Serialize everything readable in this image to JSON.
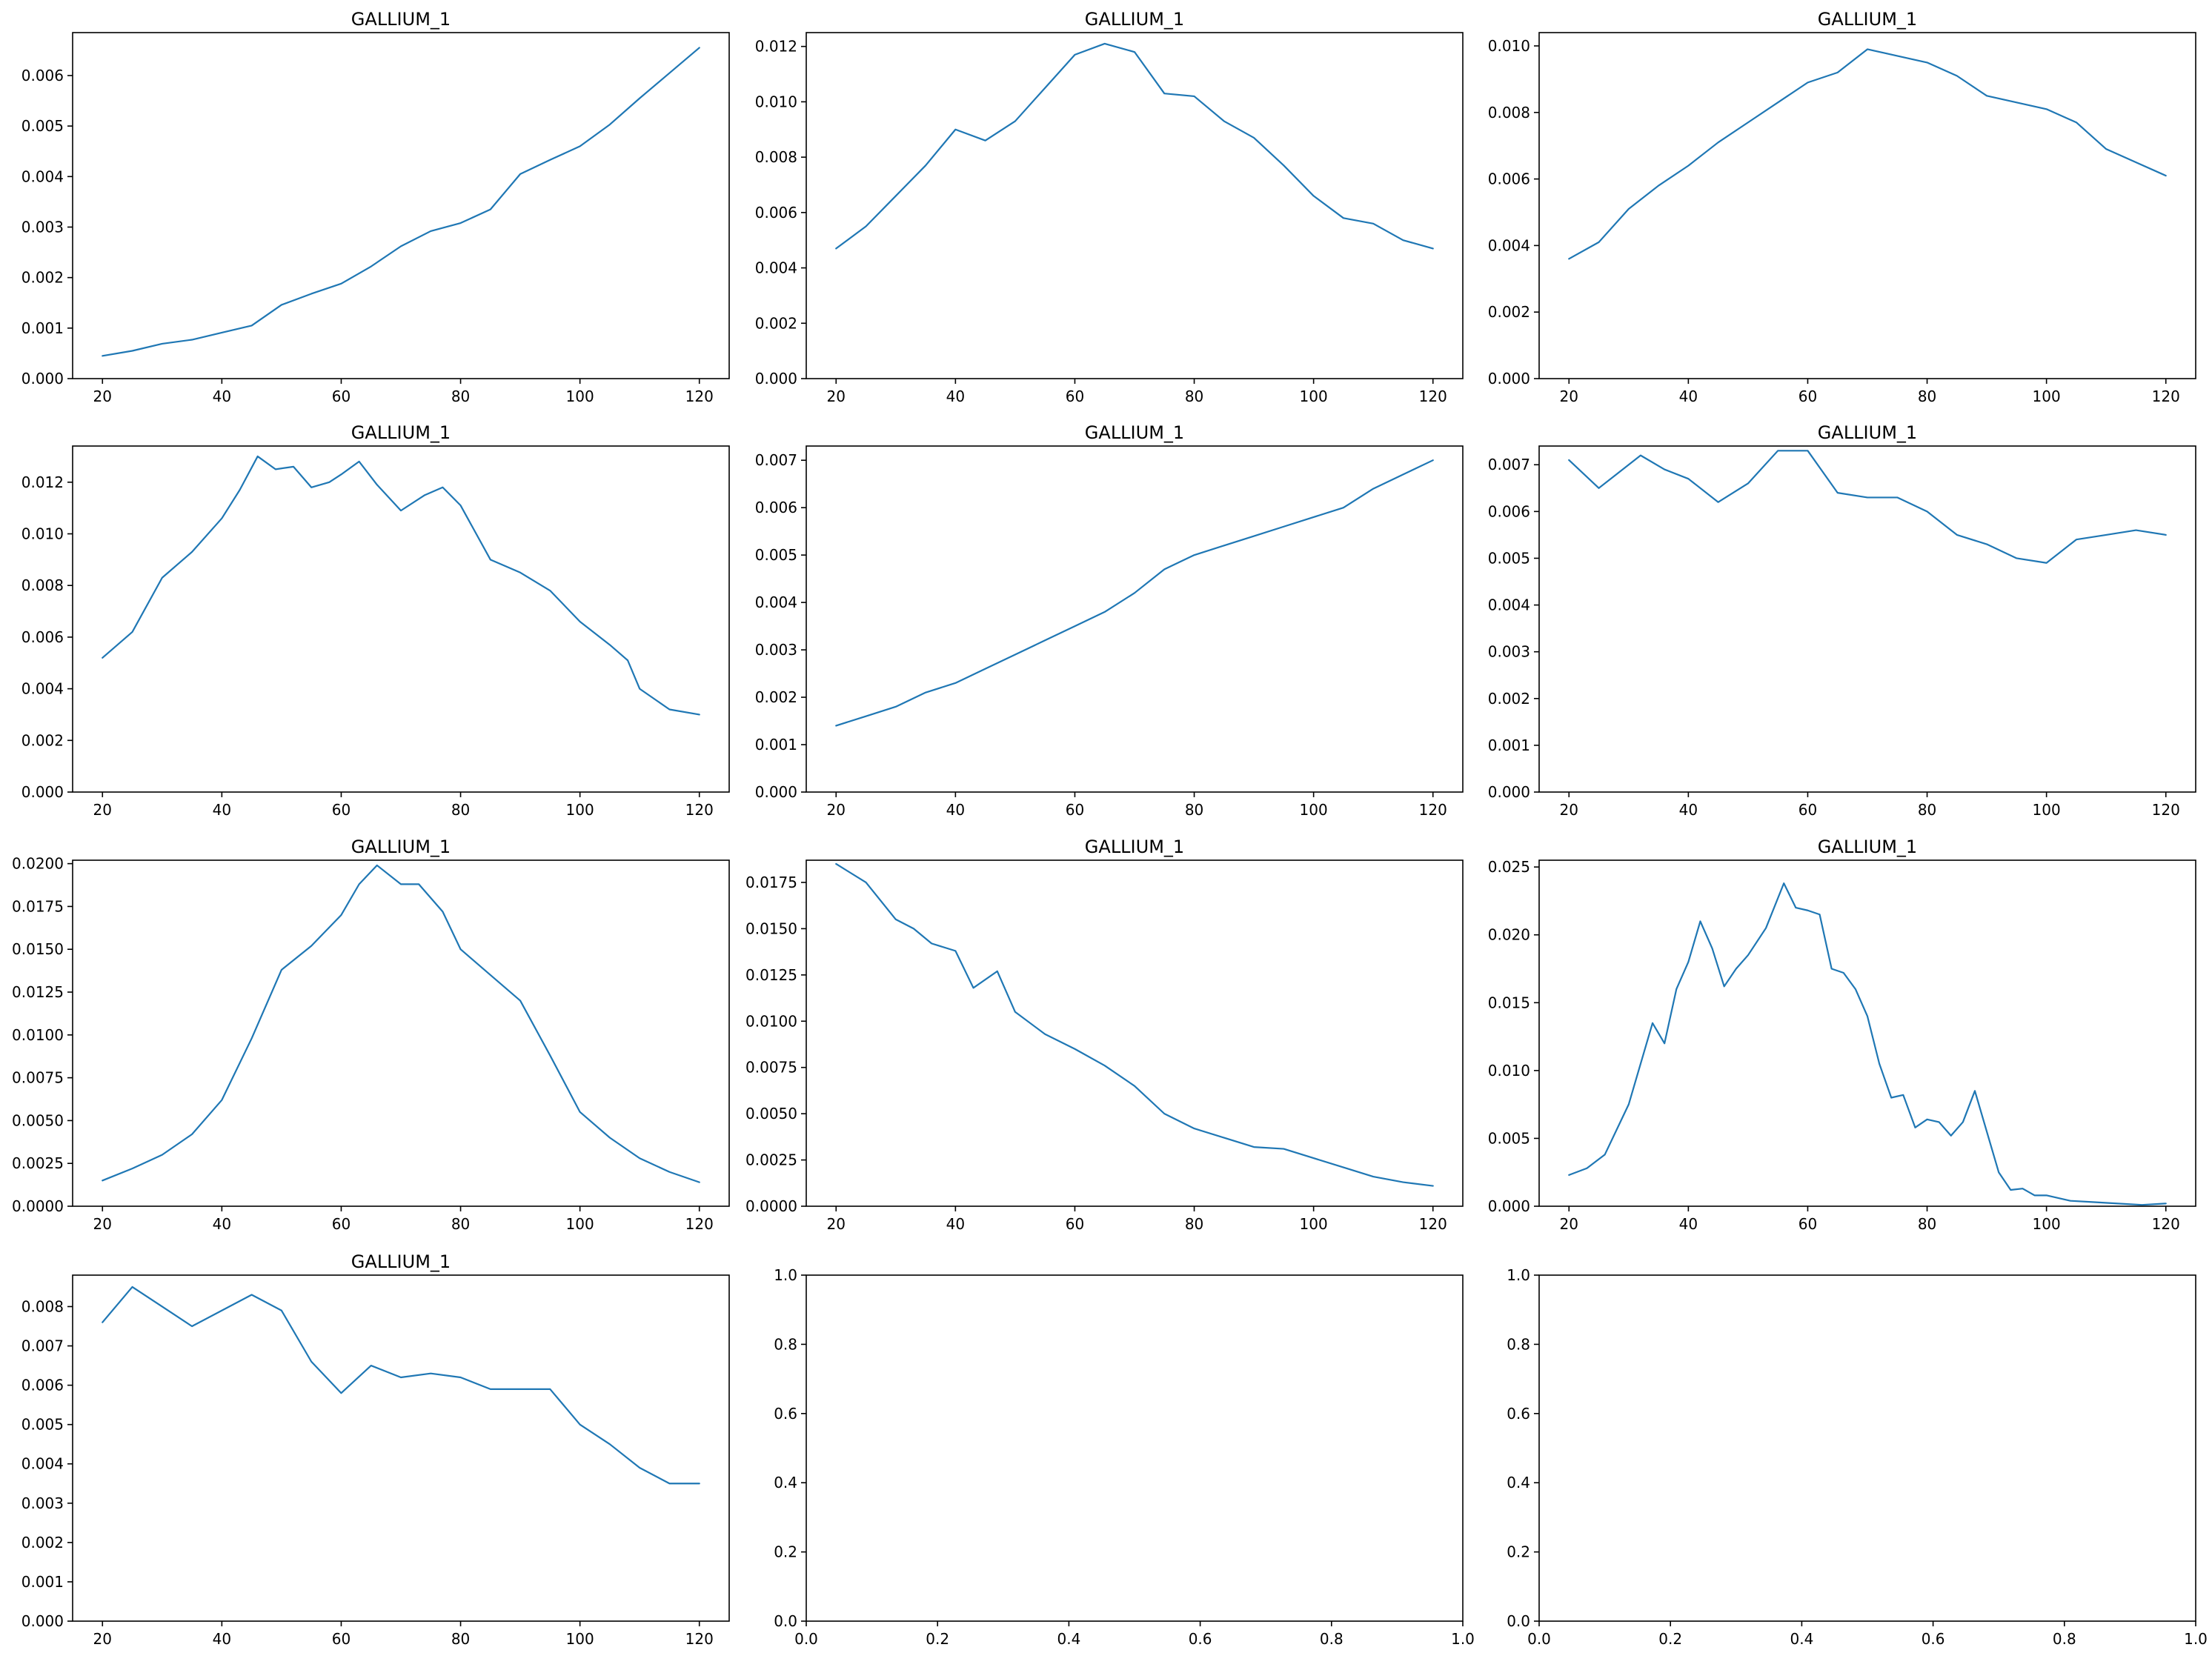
{
  "figure": {
    "series_color": "#1f77b4",
    "axes_color": "#000000",
    "background": "#ffffff"
  },
  "chart_data": [
    {
      "type": "line",
      "title": "GALLIUM_1",
      "xlim": [
        15,
        125
      ],
      "ylim": [
        0,
        0.00685
      ],
      "xticks": [
        20,
        40,
        60,
        80,
        100,
        120
      ],
      "yticks": [
        0,
        0.001,
        0.002,
        0.003,
        0.004,
        0.005,
        0.006
      ],
      "ytick_labels": [
        "0.000",
        "0.001",
        "0.002",
        "0.003",
        "0.004",
        "0.005",
        "0.006"
      ],
      "series": [
        {
          "x": [
            20,
            25,
            30,
            35,
            40,
            45,
            50,
            55,
            60,
            65,
            70,
            75,
            80,
            85,
            90,
            95,
            100,
            105,
            110,
            115,
            120
          ],
          "y": [
            0.00045,
            0.00055,
            0.00069,
            0.00077,
            0.00091,
            0.00105,
            0.00146,
            0.00168,
            0.00188,
            0.00222,
            0.00262,
            0.00292,
            0.00308,
            0.00335,
            0.00405,
            0.00433,
            0.0046,
            0.00503,
            0.00555,
            0.00605,
            0.00655
          ]
        }
      ]
    },
    {
      "type": "line",
      "title": "GALLIUM_1",
      "xlim": [
        15,
        125
      ],
      "ylim": [
        0,
        0.0125
      ],
      "xticks": [
        20,
        40,
        60,
        80,
        100,
        120
      ],
      "yticks": [
        0,
        0.002,
        0.004,
        0.006,
        0.008,
        0.01,
        0.012
      ],
      "ytick_labels": [
        "0.000",
        "0.002",
        "0.004",
        "0.006",
        "0.008",
        "0.010",
        "0.012"
      ],
      "series": [
        {
          "x": [
            20,
            25,
            30,
            35,
            40,
            45,
            50,
            55,
            60,
            65,
            70,
            75,
            80,
            85,
            90,
            95,
            100,
            105,
            110,
            115,
            120
          ],
          "y": [
            0.0047,
            0.0055,
            0.0066,
            0.0077,
            0.009,
            0.0086,
            0.0093,
            0.0105,
            0.0117,
            0.0121,
            0.0118,
            0.0103,
            0.0102,
            0.0093,
            0.0087,
            0.0077,
            0.0066,
            0.0058,
            0.0056,
            0.005,
            0.0047
          ]
        }
      ]
    },
    {
      "type": "line",
      "title": "GALLIUM_1",
      "xlim": [
        15,
        125
      ],
      "ylim": [
        0,
        0.0104
      ],
      "xticks": [
        20,
        40,
        60,
        80,
        100,
        120
      ],
      "yticks": [
        0,
        0.002,
        0.004,
        0.006,
        0.008,
        0.01
      ],
      "ytick_labels": [
        "0.000",
        "0.002",
        "0.004",
        "0.006",
        "0.008",
        "0.010"
      ],
      "series": [
        {
          "x": [
            20,
            25,
            30,
            35,
            40,
            45,
            50,
            55,
            60,
            65,
            70,
            75,
            80,
            85,
            90,
            95,
            100,
            105,
            110,
            115,
            120
          ],
          "y": [
            0.0036,
            0.0041,
            0.0051,
            0.0058,
            0.0064,
            0.0071,
            0.0077,
            0.0083,
            0.0089,
            0.0092,
            0.0099,
            0.0097,
            0.0095,
            0.0091,
            0.0085,
            0.0083,
            0.0081,
            0.0077,
            0.0069,
            0.0065,
            0.0061
          ]
        }
      ]
    },
    {
      "type": "line",
      "title": "GALLIUM_1",
      "xlim": [
        15,
        125
      ],
      "ylim": [
        0,
        0.0134
      ],
      "xticks": [
        20,
        40,
        60,
        80,
        100,
        120
      ],
      "yticks": [
        0,
        0.002,
        0.004,
        0.006,
        0.008,
        0.01,
        0.012
      ],
      "ytick_labels": [
        "0.000",
        "0.002",
        "0.004",
        "0.006",
        "0.008",
        "0.010",
        "0.012"
      ],
      "series": [
        {
          "x": [
            20,
            25,
            30,
            35,
            40,
            43,
            46,
            49,
            52,
            55,
            58,
            60,
            63,
            66,
            70,
            74,
            77,
            80,
            85,
            90,
            95,
            100,
            105,
            108,
            110,
            115,
            120
          ],
          "y": [
            0.0052,
            0.0062,
            0.0083,
            0.0093,
            0.0106,
            0.0117,
            0.013,
            0.0125,
            0.0126,
            0.0118,
            0.012,
            0.0123,
            0.0128,
            0.0119,
            0.0109,
            0.0115,
            0.0118,
            0.0111,
            0.009,
            0.0085,
            0.0078,
            0.0066,
            0.0057,
            0.0051,
            0.004,
            0.0032,
            0.003
          ]
        }
      ]
    },
    {
      "type": "line",
      "title": "GALLIUM_1",
      "xlim": [
        15,
        125
      ],
      "ylim": [
        0,
        0.0073
      ],
      "xticks": [
        20,
        40,
        60,
        80,
        100,
        120
      ],
      "yticks": [
        0,
        0.001,
        0.002,
        0.003,
        0.004,
        0.005,
        0.006,
        0.007
      ],
      "ytick_labels": [
        "0.000",
        "0.001",
        "0.002",
        "0.003",
        "0.004",
        "0.005",
        "0.006",
        "0.007"
      ],
      "series": [
        {
          "x": [
            20,
            25,
            30,
            35,
            40,
            45,
            50,
            55,
            60,
            65,
            70,
            75,
            80,
            85,
            90,
            95,
            100,
            105,
            110,
            115,
            120
          ],
          "y": [
            0.0014,
            0.0016,
            0.0018,
            0.0021,
            0.0023,
            0.0026,
            0.0029,
            0.0032,
            0.0035,
            0.0038,
            0.0042,
            0.0047,
            0.005,
            0.0052,
            0.0054,
            0.0056,
            0.0058,
            0.006,
            0.0064,
            0.0067,
            0.007
          ]
        }
      ]
    },
    {
      "type": "line",
      "title": "GALLIUM_1",
      "xlim": [
        15,
        125
      ],
      "ylim": [
        0,
        0.0074
      ],
      "xticks": [
        20,
        40,
        60,
        80,
        100,
        120
      ],
      "yticks": [
        0,
        0.001,
        0.002,
        0.003,
        0.004,
        0.005,
        0.006,
        0.007
      ],
      "ytick_labels": [
        "0.000",
        "0.001",
        "0.002",
        "0.003",
        "0.004",
        "0.005",
        "0.006",
        "0.007"
      ],
      "series": [
        {
          "x": [
            20,
            25,
            28,
            32,
            36,
            40,
            45,
            50,
            55,
            60,
            65,
            70,
            75,
            80,
            85,
            90,
            95,
            100,
            105,
            110,
            115,
            120
          ],
          "y": [
            0.0071,
            0.0065,
            0.0068,
            0.0072,
            0.0069,
            0.0067,
            0.0062,
            0.0066,
            0.0073,
            0.0073,
            0.0064,
            0.0063,
            0.0063,
            0.006,
            0.0055,
            0.0053,
            0.005,
            0.0049,
            0.0054,
            0.0055,
            0.0056,
            0.0055
          ]
        }
      ]
    },
    {
      "type": "line",
      "title": "GALLIUM_1",
      "xlim": [
        15,
        125
      ],
      "ylim": [
        0,
        0.0202
      ],
      "xticks": [
        20,
        40,
        60,
        80,
        100,
        120
      ],
      "yticks": [
        0,
        0.0025,
        0.005,
        0.0075,
        0.01,
        0.0125,
        0.015,
        0.0175,
        0.02
      ],
      "ytick_labels": [
        "0.0000",
        "0.0025",
        "0.0050",
        "0.0075",
        "0.0100",
        "0.0125",
        "0.0150",
        "0.0175",
        "0.0200"
      ],
      "series": [
        {
          "x": [
            20,
            25,
            30,
            35,
            40,
            45,
            50,
            55,
            60,
            63,
            66,
            70,
            73,
            77,
            80,
            85,
            90,
            95,
            100,
            105,
            110,
            115,
            120
          ],
          "y": [
            0.0015,
            0.0022,
            0.003,
            0.0042,
            0.0062,
            0.0098,
            0.0138,
            0.0152,
            0.017,
            0.0188,
            0.0199,
            0.0188,
            0.0188,
            0.0172,
            0.015,
            0.0135,
            0.012,
            0.0088,
            0.0055,
            0.004,
            0.0028,
            0.002,
            0.0014
          ]
        }
      ]
    },
    {
      "type": "line",
      "title": "GALLIUM_1",
      "xlim": [
        15,
        125
      ],
      "ylim": [
        0,
        0.0187
      ],
      "xticks": [
        20,
        40,
        60,
        80,
        100,
        120
      ],
      "yticks": [
        0,
        0.0025,
        0.005,
        0.0075,
        0.01,
        0.0125,
        0.015,
        0.0175
      ],
      "ytick_labels": [
        "0.0000",
        "0.0025",
        "0.0050",
        "0.0075",
        "0.0100",
        "0.0125",
        "0.0150",
        "0.0175"
      ],
      "series": [
        {
          "x": [
            20,
            25,
            30,
            33,
            36,
            40,
            43,
            47,
            50,
            55,
            60,
            65,
            70,
            75,
            80,
            85,
            90,
            95,
            100,
            105,
            110,
            115,
            120
          ],
          "y": [
            0.0185,
            0.0175,
            0.0155,
            0.015,
            0.0142,
            0.0138,
            0.0118,
            0.0127,
            0.0105,
            0.0093,
            0.0085,
            0.0076,
            0.0065,
            0.005,
            0.0042,
            0.0037,
            0.0032,
            0.0031,
            0.0026,
            0.0021,
            0.0016,
            0.0013,
            0.0011
          ]
        }
      ]
    },
    {
      "type": "line",
      "title": "GALLIUM_1",
      "xlim": [
        15,
        125
      ],
      "ylim": [
        0,
        0.0255
      ],
      "xticks": [
        20,
        40,
        60,
        80,
        100,
        120
      ],
      "yticks": [
        0,
        0.005,
        0.01,
        0.015,
        0.02,
        0.025
      ],
      "ytick_labels": [
        "0.000",
        "0.005",
        "0.010",
        "0.015",
        "0.020",
        "0.025"
      ],
      "series": [
        {
          "x": [
            20,
            23,
            26,
            30,
            34,
            36,
            38,
            40,
            42,
            44,
            46,
            48,
            50,
            53,
            56,
            58,
            60,
            62,
            64,
            66,
            68,
            70,
            72,
            74,
            76,
            78,
            80,
            82,
            84,
            86,
            88,
            90,
            92,
            94,
            96,
            98,
            100,
            104,
            108,
            112,
            116,
            120
          ],
          "y": [
            0.0023,
            0.0028,
            0.0038,
            0.0075,
            0.0135,
            0.012,
            0.016,
            0.018,
            0.021,
            0.019,
            0.0162,
            0.0175,
            0.0185,
            0.0205,
            0.0238,
            0.022,
            0.0218,
            0.0215,
            0.0175,
            0.0172,
            0.016,
            0.014,
            0.0105,
            0.008,
            0.0082,
            0.0058,
            0.0064,
            0.0062,
            0.0052,
            0.0062,
            0.0085,
            0.0055,
            0.0025,
            0.0012,
            0.0013,
            0.0008,
            0.0008,
            0.0004,
            0.0003,
            0.0002,
            0.0001,
            0.0002
          ]
        }
      ]
    },
    {
      "type": "line",
      "title": "GALLIUM_1",
      "xlim": [
        15,
        125
      ],
      "ylim": [
        0,
        0.0088
      ],
      "xticks": [
        20,
        40,
        60,
        80,
        100,
        120
      ],
      "yticks": [
        0,
        0.001,
        0.002,
        0.003,
        0.004,
        0.005,
        0.006,
        0.007,
        0.008
      ],
      "ytick_labels": [
        "0.000",
        "0.001",
        "0.002",
        "0.003",
        "0.004",
        "0.005",
        "0.006",
        "0.007",
        "0.008"
      ],
      "series": [
        {
          "x": [
            20,
            25,
            30,
            35,
            40,
            45,
            50,
            55,
            60,
            65,
            70,
            75,
            80,
            85,
            90,
            95,
            100,
            105,
            110,
            115,
            120
          ],
          "y": [
            0.0076,
            0.0085,
            0.008,
            0.0075,
            0.0079,
            0.0083,
            0.0079,
            0.0066,
            0.0058,
            0.0065,
            0.0062,
            0.0063,
            0.0062,
            0.0059,
            0.0059,
            0.0059,
            0.005,
            0.0045,
            0.0039,
            0.0035,
            0.0035
          ]
        }
      ]
    },
    {
      "type": "line",
      "title": "",
      "xlim": [
        0,
        1
      ],
      "ylim": [
        0,
        1
      ],
      "xticks": [
        0,
        0.2,
        0.4,
        0.6,
        0.8,
        1.0
      ],
      "xtick_labels": [
        "0.0",
        "0.2",
        "0.4",
        "0.6",
        "0.8",
        "1.0"
      ],
      "yticks": [
        0,
        0.2,
        0.4,
        0.6,
        0.8,
        1.0
      ],
      "ytick_labels": [
        "0.0",
        "0.2",
        "0.4",
        "0.6",
        "0.8",
        "1.0"
      ],
      "series": []
    },
    {
      "type": "line",
      "title": "",
      "xlim": [
        0,
        1
      ],
      "ylim": [
        0,
        1
      ],
      "xticks": [
        0,
        0.2,
        0.4,
        0.6,
        0.8,
        1.0
      ],
      "xtick_labels": [
        "0.0",
        "0.2",
        "0.4",
        "0.6",
        "0.8",
        "1.0"
      ],
      "yticks": [
        0,
        0.2,
        0.4,
        0.6,
        0.8,
        1.0
      ],
      "ytick_labels": [
        "0.0",
        "0.2",
        "0.4",
        "0.6",
        "0.8",
        "1.0"
      ],
      "series": []
    }
  ]
}
